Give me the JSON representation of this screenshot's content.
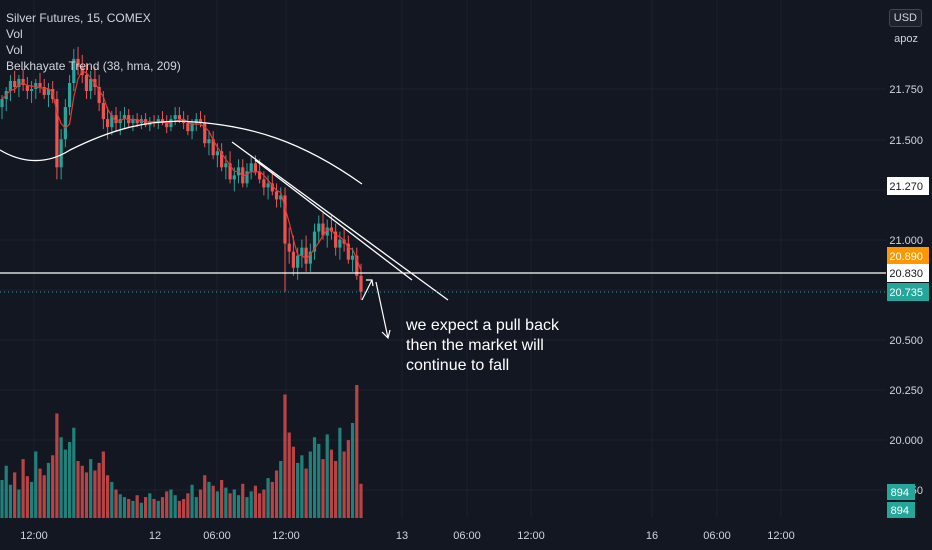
{
  "legend": {
    "title": "Silver Futures, 15, COMEX",
    "line2": "Vol",
    "line3": "Vol",
    "line4": "Belkhayate Trend (38, hma, 209)"
  },
  "toolbar": {
    "currency": "USD",
    "scale_mode": "apoz"
  },
  "note": {
    "line1": "we expect a pull back",
    "line2": "then the market will",
    "line3": "continue to fall"
  },
  "colors": {
    "background": "#131722",
    "up": "#26a69a",
    "down": "#ef5350",
    "hma": "#e53935",
    "trendline": "#ffffff",
    "badge_orange": "#ff9800",
    "badge_teal": "#26a69a"
  },
  "chart_data": {
    "type": "candlestick",
    "title": "Silver Futures, 15, COMEX",
    "y_ticks": [
      "21.750",
      "21.500",
      "21.000",
      "20.500",
      "20.250",
      "20.000",
      "19.750"
    ],
    "x_ticks": [
      "12:00",
      "12",
      "06:00",
      "12:00",
      "13",
      "06:00",
      "12:00",
      "16",
      "06:00",
      "12:00"
    ],
    "price_labels": {
      "level_line": "21.270",
      "horizontal_line": "20.830",
      "prev_close": "20.890",
      "last_price": "20.735",
      "volume_1": "894",
      "volume_2": "894"
    },
    "ohlc": [
      [
        21.66,
        21.72,
        21.6,
        21.7
      ],
      [
        21.7,
        21.76,
        21.64,
        21.74
      ],
      [
        21.74,
        21.82,
        21.69,
        21.79
      ],
      [
        21.79,
        21.84,
        21.73,
        21.76
      ],
      [
        21.76,
        21.82,
        21.71,
        21.8
      ],
      [
        21.8,
        21.85,
        21.74,
        21.77
      ],
      [
        21.77,
        21.81,
        21.7,
        21.74
      ],
      [
        21.74,
        21.79,
        21.68,
        21.75
      ],
      [
        21.75,
        21.8,
        21.7,
        21.78
      ],
      [
        21.78,
        21.83,
        21.73,
        21.76
      ],
      [
        21.76,
        21.8,
        21.7,
        21.72
      ],
      [
        21.72,
        21.78,
        21.66,
        21.75
      ],
      [
        21.75,
        21.79,
        21.68,
        21.7
      ],
      [
        21.7,
        21.74,
        21.3,
        21.36
      ],
      [
        21.36,
        21.55,
        21.3,
        21.5
      ],
      [
        21.5,
        21.7,
        21.46,
        21.66
      ],
      [
        21.66,
        21.82,
        21.62,
        21.78
      ],
      [
        21.78,
        21.95,
        21.74,
        21.9
      ],
      [
        21.9,
        21.96,
        21.82,
        21.86
      ],
      [
        21.86,
        21.92,
        21.78,
        21.82
      ],
      [
        21.82,
        21.88,
        21.7,
        21.74
      ],
      [
        21.74,
        21.84,
        21.7,
        21.8
      ],
      [
        21.8,
        21.86,
        21.72,
        21.76
      ],
      [
        21.76,
        21.82,
        21.64,
        21.68
      ],
      [
        21.68,
        21.74,
        21.55,
        21.6
      ],
      [
        21.6,
        21.66,
        21.5,
        21.56
      ],
      [
        21.56,
        21.64,
        21.52,
        21.62
      ],
      [
        21.62,
        21.66,
        21.54,
        21.58
      ],
      [
        21.58,
        21.64,
        21.52,
        21.6
      ],
      [
        21.6,
        21.66,
        21.55,
        21.62
      ],
      [
        21.62,
        21.65,
        21.56,
        21.58
      ],
      [
        21.58,
        21.62,
        21.54,
        21.6
      ],
      [
        21.6,
        21.63,
        21.56,
        21.58
      ],
      [
        21.58,
        21.62,
        21.55,
        21.6
      ],
      [
        21.6,
        21.63,
        21.56,
        21.57
      ],
      [
        21.57,
        21.61,
        21.54,
        21.59
      ],
      [
        21.59,
        21.62,
        21.56,
        21.58
      ],
      [
        21.58,
        21.62,
        21.55,
        21.6
      ],
      [
        21.6,
        21.64,
        21.57,
        21.58
      ],
      [
        21.58,
        21.62,
        21.53,
        21.56
      ],
      [
        21.56,
        21.62,
        21.54,
        21.6
      ],
      [
        21.6,
        21.66,
        21.57,
        21.62
      ],
      [
        21.62,
        21.66,
        21.58,
        21.6
      ],
      [
        21.6,
        21.64,
        21.55,
        21.58
      ],
      [
        21.58,
        21.62,
        21.52,
        21.54
      ],
      [
        21.54,
        21.6,
        21.5,
        21.58
      ],
      [
        21.58,
        21.63,
        21.54,
        21.6
      ],
      [
        21.6,
        21.64,
        21.56,
        21.58
      ],
      [
        21.58,
        21.62,
        21.46,
        21.48
      ],
      [
        21.48,
        21.54,
        21.42,
        21.5
      ],
      [
        21.5,
        21.54,
        21.4,
        21.42
      ],
      [
        21.42,
        21.48,
        21.36,
        21.44
      ],
      [
        21.44,
        21.48,
        21.34,
        21.36
      ],
      [
        21.36,
        21.42,
        21.3,
        21.38
      ],
      [
        21.38,
        21.44,
        21.28,
        21.3
      ],
      [
        21.3,
        21.36,
        21.24,
        21.32
      ],
      [
        21.32,
        21.4,
        21.28,
        21.36
      ],
      [
        21.36,
        21.4,
        21.26,
        21.28
      ],
      [
        21.28,
        21.38,
        21.26,
        21.34
      ],
      [
        21.34,
        21.42,
        21.3,
        21.38
      ],
      [
        21.38,
        21.42,
        21.32,
        21.34
      ],
      [
        21.34,
        21.4,
        21.28,
        21.3
      ],
      [
        21.3,
        21.34,
        21.22,
        21.26
      ],
      [
        21.26,
        21.32,
        21.2,
        21.28
      ],
      [
        21.28,
        21.34,
        21.22,
        21.24
      ],
      [
        21.24,
        21.28,
        21.16,
        21.2
      ],
      [
        21.2,
        21.26,
        21.16,
        21.22
      ],
      [
        21.22,
        21.26,
        20.74,
        20.98
      ],
      [
        20.98,
        21.06,
        20.88,
        20.94
      ],
      [
        20.94,
        21.02,
        20.82,
        20.86
      ],
      [
        20.86,
        20.96,
        20.8,
        20.92
      ],
      [
        20.92,
        21.0,
        20.86,
        20.96
      ],
      [
        20.96,
        21.02,
        20.84,
        20.88
      ],
      [
        20.88,
        20.98,
        20.84,
        20.94
      ],
      [
        20.94,
        21.08,
        20.9,
        21.04
      ],
      [
        21.04,
        21.12,
        20.98,
        21.08
      ],
      [
        21.08,
        21.14,
        21.0,
        21.02
      ],
      [
        21.02,
        21.1,
        20.96,
        21.06
      ],
      [
        21.06,
        21.12,
        21.0,
        21.04
      ],
      [
        21.04,
        21.08,
        20.92,
        20.96
      ],
      [
        20.96,
        21.04,
        20.9,
        21.0
      ],
      [
        21.0,
        21.06,
        20.94,
        20.98
      ],
      [
        20.98,
        21.02,
        20.88,
        20.9
      ],
      [
        20.9,
        20.96,
        20.84,
        20.92
      ],
      [
        20.92,
        20.96,
        20.8,
        20.82
      ],
      [
        20.82,
        20.88,
        20.7,
        20.74
      ]
    ],
    "volume": [
      40,
      55,
      35,
      48,
      30,
      62,
      44,
      38,
      70,
      52,
      45,
      58,
      66,
      110,
      85,
      72,
      80,
      95,
      60,
      55,
      48,
      62,
      50,
      58,
      70,
      45,
      38,
      30,
      25,
      22,
      20,
      18,
      24,
      16,
      22,
      26,
      20,
      18,
      22,
      28,
      30,
      24,
      18,
      20,
      26,
      35,
      22,
      30,
      45,
      38,
      34,
      28,
      40,
      32,
      26,
      30,
      24,
      36,
      22,
      28,
      34,
      26,
      30,
      42,
      38,
      50,
      60,
      130,
      90,
      75,
      58,
      66,
      52,
      70,
      85,
      78,
      62,
      88,
      72,
      60,
      95,
      70,
      82,
      100,
      140,
      36
    ]
  }
}
